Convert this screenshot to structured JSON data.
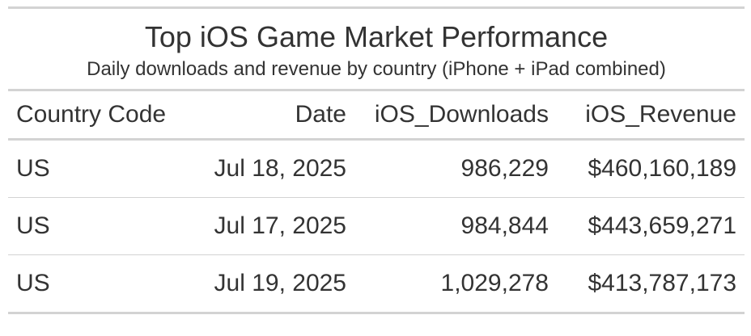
{
  "chart_data": {
    "type": "table",
    "title": "Top iOS Game Market Performance",
    "subtitle": "Daily downloads and revenue by country (iPhone + iPad combined)",
    "columns": [
      "Country Code",
      "Date",
      "iOS_Downloads",
      "iOS_Revenue"
    ],
    "rows": [
      [
        "US",
        "Jul 18, 2025",
        "986,229",
        "$460,160,189"
      ],
      [
        "US",
        "Jul 17, 2025",
        "984,844",
        "$443,659,271"
      ],
      [
        "US",
        "Jul 19, 2025",
        "1,029,278",
        "$413,787,173"
      ]
    ]
  },
  "colors": {
    "text": "#333333",
    "rule": "#d3d3d3",
    "background": "#ffffff"
  }
}
